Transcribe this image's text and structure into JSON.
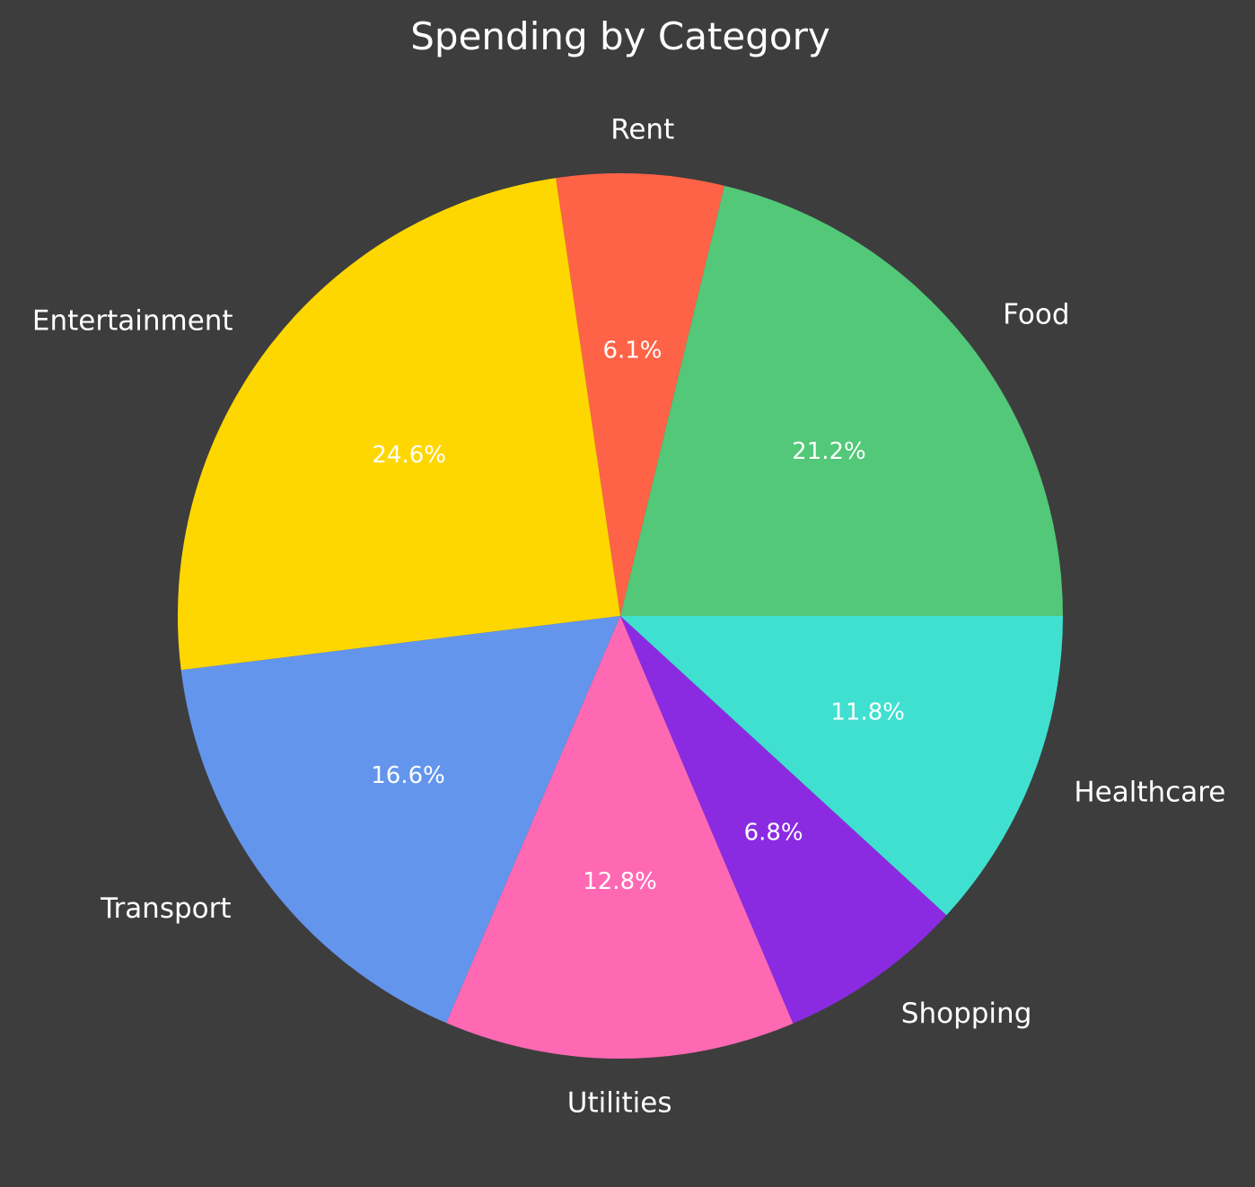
{
  "chart_data": {
    "type": "pie",
    "title": "Spending by Category",
    "start_angle_deg": 0,
    "direction": "counterclockwise",
    "slices": [
      {
        "label": "Food",
        "value": 21.2,
        "pct_label": "21.2%",
        "color": "#52c878"
      },
      {
        "label": "Rent",
        "value": 6.1,
        "pct_label": "6.1%",
        "color": "#ff6347"
      },
      {
        "label": "Entertainment",
        "value": 24.6,
        "pct_label": "24.6%",
        "color": "#ffd700"
      },
      {
        "label": "Transport",
        "value": 16.6,
        "pct_label": "16.6%",
        "color": "#6495ed"
      },
      {
        "label": "Utilities",
        "value": 12.8,
        "pct_label": "12.8%",
        "color": "#ff69b4"
      },
      {
        "label": "Shopping",
        "value": 6.8,
        "pct_label": "6.8%",
        "color": "#8a2be2"
      },
      {
        "label": "Healthcare",
        "value": 11.8,
        "pct_label": "11.8%",
        "color": "#40e0d0"
      }
    ]
  }
}
